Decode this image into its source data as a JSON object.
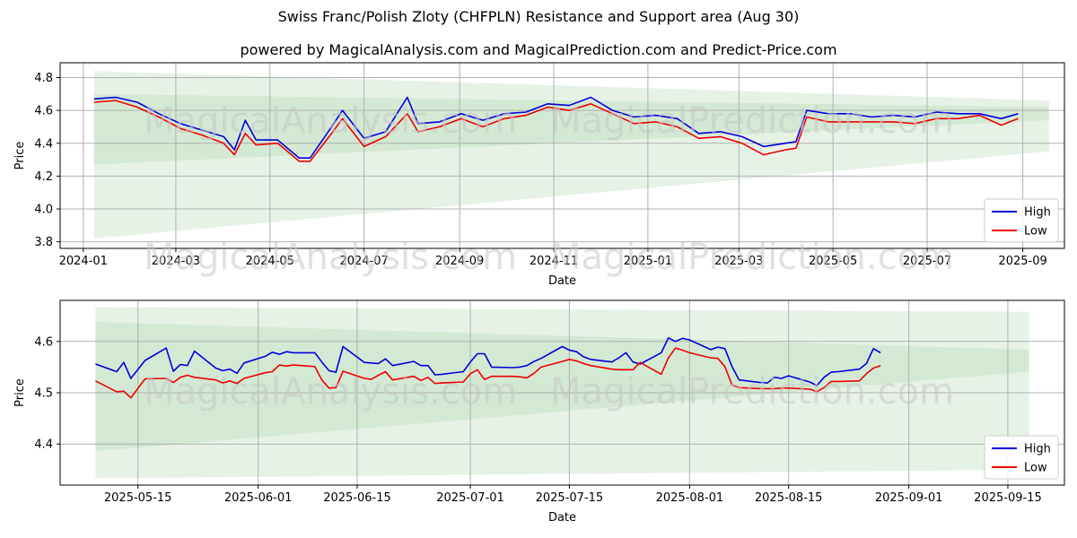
{
  "title": "Swiss Franc/Polish Zloty (CHFPLN) Resistance and Support area (Aug 30)",
  "subtitle": "powered by MagicalAnalysis.com and MagicalPrediction.com and Predict-Price.com",
  "watermarks": [
    "MagicalAnalysis.com",
    "MagicalPrediction.com"
  ],
  "colors": {
    "high": "#0000dd",
    "low": "#ee0000",
    "band_outer": "#e4f1e4",
    "band_inner": "#cfe7cf"
  },
  "chart_data": [
    {
      "type": "line",
      "xlabel": "Date",
      "ylabel": "Price",
      "x_range": [
        "2023-12-17",
        "2025-09-28"
      ],
      "ylim": [
        3.76,
        4.89
      ],
      "yticks": [
        3.8,
        4.0,
        4.2,
        4.4,
        4.6,
        4.8
      ],
      "ytick_labels": [
        "3.8",
        "4.0",
        "4.2",
        "4.4",
        "4.6",
        "4.8"
      ],
      "xticks": [
        "2024-01-01",
        "2024-03-01",
        "2024-05-01",
        "2024-07-01",
        "2024-09-01",
        "2024-11-01",
        "2025-01-01",
        "2025-03-01",
        "2025-05-01",
        "2025-07-01",
        "2025-09-01"
      ],
      "xtick_labels": [
        "2024-01",
        "2024-03",
        "2024-05",
        "2024-07",
        "2024-09",
        "2024-11",
        "2025-01",
        "2025-03",
        "2025-05",
        "2025-07",
        "2025-09"
      ],
      "grid": true,
      "legend": {
        "position": "bottom-right",
        "entries": [
          "High",
          "Low"
        ]
      },
      "bands": [
        {
          "name": "outer",
          "start": "2024-01-08",
          "end": "2025-09-18",
          "upper": [
            4.84,
            4.66
          ],
          "lower": [
            3.82,
            4.35
          ]
        },
        {
          "name": "inner",
          "start": "2024-01-08",
          "end": "2025-09-18",
          "upper": [
            4.7,
            4.62
          ],
          "lower": [
            4.27,
            4.54
          ]
        }
      ],
      "series": [
        {
          "name": "High",
          "x": [
            "2024-01-08",
            "2024-01-22",
            "2024-02-05",
            "2024-02-19",
            "2024-03-04",
            "2024-03-18",
            "2024-04-01",
            "2024-04-08",
            "2024-04-15",
            "2024-04-22",
            "2024-05-06",
            "2024-05-20",
            "2024-05-27",
            "2024-06-10",
            "2024-06-17",
            "2024-07-01",
            "2024-07-15",
            "2024-07-29",
            "2024-08-05",
            "2024-08-19",
            "2024-09-02",
            "2024-09-16",
            "2024-09-30",
            "2024-10-14",
            "2024-10-28",
            "2024-11-11",
            "2024-11-25",
            "2024-12-09",
            "2024-12-23",
            "2025-01-06",
            "2025-01-20",
            "2025-02-03",
            "2025-02-17",
            "2025-03-03",
            "2025-03-17",
            "2025-03-31",
            "2025-04-07",
            "2025-04-14",
            "2025-04-28",
            "2025-05-12",
            "2025-05-26",
            "2025-06-09",
            "2025-06-23",
            "2025-07-07",
            "2025-07-21",
            "2025-08-04",
            "2025-08-18",
            "2025-08-29"
          ],
          "values": [
            4.67,
            4.68,
            4.65,
            4.58,
            4.52,
            4.48,
            4.44,
            4.36,
            4.54,
            4.42,
            4.42,
            4.31,
            4.31,
            4.5,
            4.6,
            4.43,
            4.47,
            4.68,
            4.52,
            4.53,
            4.58,
            4.54,
            4.58,
            4.59,
            4.64,
            4.63,
            4.68,
            4.6,
            4.56,
            4.57,
            4.55,
            4.46,
            4.47,
            4.44,
            4.38,
            4.4,
            4.41,
            4.6,
            4.58,
            4.58,
            4.56,
            4.57,
            4.56,
            4.59,
            4.58,
            4.58,
            4.55,
            4.58
          ]
        },
        {
          "name": "Low",
          "x": [
            "2024-01-08",
            "2024-01-22",
            "2024-02-05",
            "2024-02-19",
            "2024-03-04",
            "2024-03-18",
            "2024-04-01",
            "2024-04-08",
            "2024-04-15",
            "2024-04-22",
            "2024-05-06",
            "2024-05-20",
            "2024-05-27",
            "2024-06-10",
            "2024-06-17",
            "2024-07-01",
            "2024-07-15",
            "2024-07-29",
            "2024-08-05",
            "2024-08-19",
            "2024-09-02",
            "2024-09-16",
            "2024-09-30",
            "2024-10-14",
            "2024-10-28",
            "2024-11-11",
            "2024-11-25",
            "2024-12-09",
            "2024-12-23",
            "2025-01-06",
            "2025-01-20",
            "2025-02-03",
            "2025-02-17",
            "2025-03-03",
            "2025-03-17",
            "2025-03-31",
            "2025-04-07",
            "2025-04-14",
            "2025-04-28",
            "2025-05-12",
            "2025-05-26",
            "2025-06-09",
            "2025-06-23",
            "2025-07-07",
            "2025-07-21",
            "2025-08-04",
            "2025-08-18",
            "2025-08-29"
          ],
          "values": [
            4.65,
            4.66,
            4.62,
            4.56,
            4.49,
            4.45,
            4.4,
            4.33,
            4.46,
            4.39,
            4.4,
            4.29,
            4.29,
            4.46,
            4.55,
            4.38,
            4.44,
            4.58,
            4.47,
            4.5,
            4.55,
            4.5,
            4.55,
            4.57,
            4.62,
            4.6,
            4.64,
            4.58,
            4.52,
            4.53,
            4.5,
            4.43,
            4.44,
            4.4,
            4.33,
            4.36,
            4.37,
            4.56,
            4.53,
            4.53,
            4.53,
            4.53,
            4.52,
            4.55,
            4.55,
            4.57,
            4.51,
            4.55
          ]
        }
      ]
    },
    {
      "type": "line",
      "xlabel": "Date",
      "ylabel": "Price",
      "x_range": [
        "2025-05-04",
        "2025-09-23"
      ],
      "ylim": [
        4.32,
        4.68
      ],
      "yticks": [
        4.4,
        4.5,
        4.6
      ],
      "ytick_labels": [
        "4.4",
        "4.5",
        "4.6"
      ],
      "xticks": [
        "2025-05-15",
        "2025-06-01",
        "2025-06-15",
        "2025-07-01",
        "2025-07-15",
        "2025-08-01",
        "2025-08-15",
        "2025-09-01",
        "2025-09-15"
      ],
      "xtick_labels": [
        "2025-05-15",
        "2025-06-01",
        "2025-06-15",
        "2025-07-01",
        "2025-07-15",
        "2025-08-01",
        "2025-08-15",
        "2025-09-01",
        "2025-09-15"
      ],
      "grid": true,
      "legend": {
        "position": "bottom-right",
        "entries": [
          "High",
          "Low"
        ]
      },
      "bands": [
        {
          "name": "outer",
          "start": "2025-05-09",
          "end": "2025-09-18",
          "upper": [
            4.667,
            4.658
          ],
          "lower": [
            4.333,
            4.35
          ]
        },
        {
          "name": "inner",
          "start": "2025-05-09",
          "end": "2025-09-18",
          "upper": [
            4.638,
            4.584
          ],
          "lower": [
            4.386,
            4.541
          ]
        }
      ],
      "series": [
        {
          "name": "High",
          "x": [
            "2025-05-09",
            "2025-05-12",
            "2025-05-13",
            "2025-05-14",
            "2025-05-16",
            "2025-05-19",
            "2025-05-20",
            "2025-05-21",
            "2025-05-22",
            "2025-05-23",
            "2025-05-26",
            "2025-05-27",
            "2025-05-28",
            "2025-05-29",
            "2025-05-30",
            "2025-06-02",
            "2025-06-03",
            "2025-06-04",
            "2025-06-05",
            "2025-06-06",
            "2025-06-09",
            "2025-06-10",
            "2025-06-11",
            "2025-06-12",
            "2025-06-13",
            "2025-06-16",
            "2025-06-17",
            "2025-06-18",
            "2025-06-19",
            "2025-06-20",
            "2025-06-23",
            "2025-06-24",
            "2025-06-25",
            "2025-06-26",
            "2025-06-27",
            "2025-06-30",
            "2025-07-01",
            "2025-07-02",
            "2025-07-03",
            "2025-07-04",
            "2025-07-07",
            "2025-07-08",
            "2025-07-09",
            "2025-07-10",
            "2025-07-11",
            "2025-07-14",
            "2025-07-15",
            "2025-07-16",
            "2025-07-17",
            "2025-07-18",
            "2025-07-21",
            "2025-07-22",
            "2025-07-23",
            "2025-07-24",
            "2025-07-25",
            "2025-07-28",
            "2025-07-29",
            "2025-07-30",
            "2025-07-31",
            "2025-08-01",
            "2025-08-04",
            "2025-08-05",
            "2025-08-06",
            "2025-08-07",
            "2025-08-08",
            "2025-08-11",
            "2025-08-12",
            "2025-08-13",
            "2025-08-14",
            "2025-08-15",
            "2025-08-18",
            "2025-08-19",
            "2025-08-20",
            "2025-08-21",
            "2025-08-22",
            "2025-08-25",
            "2025-08-26",
            "2025-08-27",
            "2025-08-28"
          ],
          "values": [
            4.556,
            4.541,
            4.559,
            4.528,
            4.563,
            4.587,
            4.542,
            4.555,
            4.553,
            4.581,
            4.548,
            4.543,
            4.546,
            4.538,
            4.558,
            4.571,
            4.579,
            4.575,
            4.58,
            4.578,
            4.578,
            4.56,
            4.543,
            4.54,
            4.59,
            4.559,
            4.558,
            4.557,
            4.566,
            4.553,
            4.561,
            4.553,
            4.553,
            4.535,
            4.536,
            4.541,
            4.56,
            4.576,
            4.576,
            4.55,
            4.549,
            4.55,
            4.553,
            4.561,
            4.567,
            4.59,
            4.583,
            4.58,
            4.57,
            4.565,
            4.56,
            4.568,
            4.578,
            4.56,
            4.556,
            4.578,
            4.607,
            4.6,
            4.606,
            4.603,
            4.584,
            4.589,
            4.586,
            4.551,
            4.525,
            4.52,
            4.519,
            4.53,
            4.528,
            4.533,
            4.521,
            4.514,
            4.53,
            4.54,
            4.541,
            4.546,
            4.557,
            4.586,
            4.578
          ]
        },
        {
          "name": "Low",
          "x": [
            "2025-05-09",
            "2025-05-12",
            "2025-05-13",
            "2025-05-14",
            "2025-05-16",
            "2025-05-19",
            "2025-05-20",
            "2025-05-21",
            "2025-05-22",
            "2025-05-23",
            "2025-05-26",
            "2025-05-27",
            "2025-05-28",
            "2025-05-29",
            "2025-05-30",
            "2025-06-02",
            "2025-06-03",
            "2025-06-04",
            "2025-06-05",
            "2025-06-06",
            "2025-06-09",
            "2025-06-10",
            "2025-06-11",
            "2025-06-12",
            "2025-06-13",
            "2025-06-16",
            "2025-06-17",
            "2025-06-18",
            "2025-06-19",
            "2025-06-20",
            "2025-06-23",
            "2025-06-24",
            "2025-06-25",
            "2025-06-26",
            "2025-06-27",
            "2025-06-30",
            "2025-07-01",
            "2025-07-02",
            "2025-07-03",
            "2025-07-04",
            "2025-07-07",
            "2025-07-08",
            "2025-07-09",
            "2025-07-10",
            "2025-07-11",
            "2025-07-14",
            "2025-07-15",
            "2025-07-16",
            "2025-07-17",
            "2025-07-18",
            "2025-07-21",
            "2025-07-22",
            "2025-07-23",
            "2025-07-24",
            "2025-07-25",
            "2025-07-28",
            "2025-07-29",
            "2025-07-30",
            "2025-07-31",
            "2025-08-01",
            "2025-08-04",
            "2025-08-05",
            "2025-08-06",
            "2025-08-07",
            "2025-08-08",
            "2025-08-11",
            "2025-08-12",
            "2025-08-13",
            "2025-08-14",
            "2025-08-15",
            "2025-08-18",
            "2025-08-19",
            "2025-08-20",
            "2025-08-21",
            "2025-08-22",
            "2025-08-25",
            "2025-08-26",
            "2025-08-27",
            "2025-08-28"
          ],
          "values": [
            4.523,
            4.502,
            4.503,
            4.49,
            4.527,
            4.528,
            4.52,
            4.53,
            4.534,
            4.53,
            4.525,
            4.519,
            4.523,
            4.518,
            4.528,
            4.539,
            4.541,
            4.554,
            4.552,
            4.554,
            4.551,
            4.525,
            4.509,
            4.51,
            4.542,
            4.528,
            4.526,
            4.534,
            4.541,
            4.525,
            4.532,
            4.524,
            4.53,
            4.518,
            4.519,
            4.521,
            4.537,
            4.545,
            4.526,
            4.532,
            4.532,
            4.531,
            4.529,
            4.538,
            4.55,
            4.561,
            4.565,
            4.562,
            4.557,
            4.553,
            4.546,
            4.545,
            4.545,
            4.545,
            4.559,
            4.536,
            4.568,
            4.587,
            4.583,
            4.578,
            4.568,
            4.567,
            4.551,
            4.515,
            4.51,
            4.508,
            4.508,
            4.508,
            4.509,
            4.509,
            4.507,
            4.502,
            4.51,
            4.522,
            4.522,
            4.523,
            4.537,
            4.548,
            4.553
          ]
        }
      ]
    }
  ]
}
